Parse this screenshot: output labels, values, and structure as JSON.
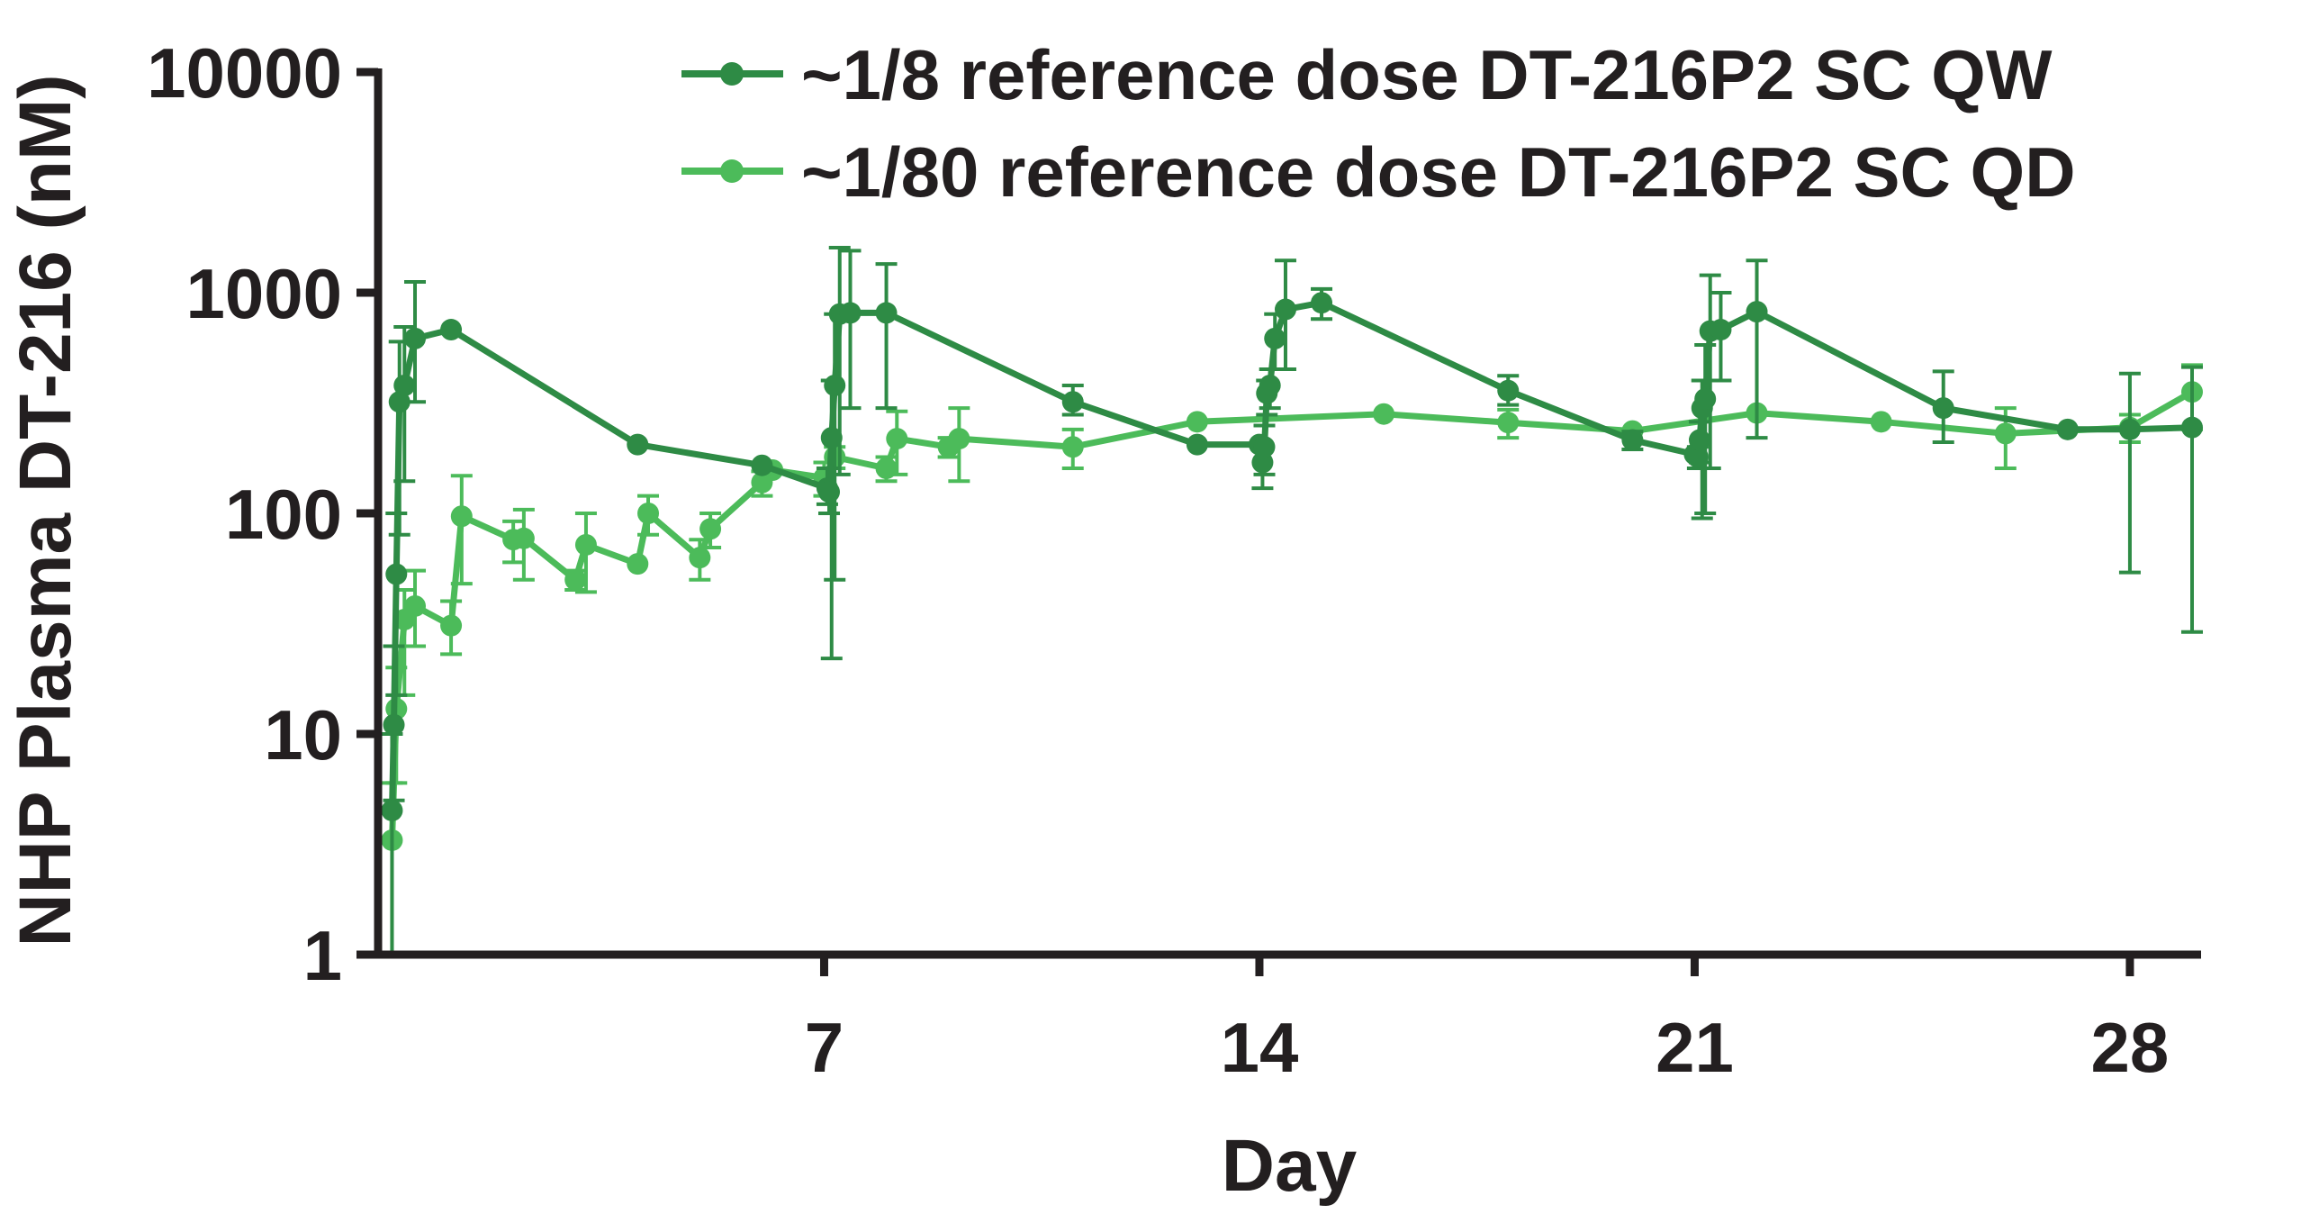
{
  "chart_data": {
    "type": "line",
    "title": "",
    "xlabel": "Day",
    "ylabel": "NHP Plasma DT-216 (nM)",
    "yscale": "log",
    "ylim": [
      1,
      10000
    ],
    "xlim": [
      0,
      29
    ],
    "x_ticks": [
      7,
      14,
      21,
      28
    ],
    "x_tick_labels": [
      "7",
      "14",
      "21",
      "28"
    ],
    "y_ticks": [
      1,
      10,
      100,
      1000,
      10000
    ],
    "y_tick_labels": [
      "1",
      "10",
      "100",
      "1000",
      "10000"
    ],
    "legend_position": "top-right",
    "series": [
      {
        "name": "~1/8 reference dose DT-216P2 SC QW",
        "color": "#2e8b45",
        "points": [
          {
            "x": 0.05,
            "y": 4.5,
            "lo": 1,
            "hi": 10
          },
          {
            "x": 0.08,
            "y": 11,
            "lo": 5,
            "hi": 25
          },
          {
            "x": 0.12,
            "y": 53,
            "lo": 15,
            "hi": 100
          },
          {
            "x": 0.17,
            "y": 320,
            "lo": 80,
            "hi": 600
          },
          {
            "x": 0.25,
            "y": 380,
            "lo": 140,
            "hi": 700
          },
          {
            "x": 0.42,
            "y": 620,
            "lo": 320,
            "hi": 1120
          },
          {
            "x": 1.0,
            "y": 680,
            "lo": 680,
            "hi": 680
          },
          {
            "x": 4.0,
            "y": 205,
            "lo": 205,
            "hi": 205
          },
          {
            "x": 6.0,
            "y": 165,
            "lo": 165,
            "hi": 165
          },
          {
            "x": 7.05,
            "y": 130,
            "lo": 110,
            "hi": 160
          },
          {
            "x": 7.08,
            "y": 125,
            "lo": 100,
            "hi": 160
          },
          {
            "x": 7.12,
            "y": 220,
            "lo": 22,
            "hi": 400
          },
          {
            "x": 7.17,
            "y": 380,
            "lo": 50,
            "hi": 800
          },
          {
            "x": 7.25,
            "y": 800,
            "lo": 150,
            "hi": 1600
          },
          {
            "x": 7.42,
            "y": 810,
            "lo": 300,
            "hi": 1550
          },
          {
            "x": 8.0,
            "y": 810,
            "lo": 300,
            "hi": 1350
          },
          {
            "x": 11.0,
            "y": 320,
            "lo": 280,
            "hi": 380
          },
          {
            "x": 13.0,
            "y": 205,
            "lo": 205,
            "hi": 205
          },
          {
            "x": 14.0,
            "y": 205,
            "lo": 205,
            "hi": 205
          },
          {
            "x": 14.05,
            "y": 170,
            "lo": 130,
            "hi": 200
          },
          {
            "x": 14.08,
            "y": 200,
            "lo": 150,
            "hi": 250
          },
          {
            "x": 14.12,
            "y": 350,
            "lo": 280,
            "hi": 400
          },
          {
            "x": 14.17,
            "y": 380,
            "lo": 300,
            "hi": 450
          },
          {
            "x": 14.25,
            "y": 620,
            "lo": 450,
            "hi": 800
          },
          {
            "x": 14.42,
            "y": 840,
            "lo": 450,
            "hi": 1400
          },
          {
            "x": 15.0,
            "y": 900,
            "lo": 760,
            "hi": 1040
          },
          {
            "x": 18.0,
            "y": 360,
            "lo": 310,
            "hi": 420
          },
          {
            "x": 20.0,
            "y": 215,
            "lo": 195,
            "hi": 235
          },
          {
            "x": 21.0,
            "y": 185,
            "lo": 185,
            "hi": 185
          },
          {
            "x": 21.05,
            "y": 180,
            "lo": 160,
            "hi": 200
          },
          {
            "x": 21.08,
            "y": 215,
            "lo": 170,
            "hi": 260
          },
          {
            "x": 21.12,
            "y": 300,
            "lo": 95,
            "hi": 400
          },
          {
            "x": 21.17,
            "y": 330,
            "lo": 100,
            "hi": 580
          },
          {
            "x": 21.25,
            "y": 670,
            "lo": 160,
            "hi": 1200
          },
          {
            "x": 21.42,
            "y": 680,
            "lo": 400,
            "hi": 1000
          },
          {
            "x": 22.0,
            "y": 820,
            "lo": 220,
            "hi": 1400
          },
          {
            "x": 25.0,
            "y": 300,
            "lo": 210,
            "hi": 440
          },
          {
            "x": 27.0,
            "y": 240,
            "lo": 240,
            "hi": 240
          },
          {
            "x": 28.0,
            "y": 240,
            "lo": 54,
            "hi": 430
          },
          {
            "x": 29.0,
            "y": 245,
            "lo": 29,
            "hi": 460
          }
        ]
      },
      {
        "name": "~1/80 reference dose DT-216P2 SC QD",
        "color": "#4cbb5a",
        "points": [
          {
            "x": 0.05,
            "y": 3.3,
            "lo": 1,
            "hi": 6
          },
          {
            "x": 0.12,
            "y": 13,
            "lo": 6,
            "hi": 20
          },
          {
            "x": 0.25,
            "y": 33,
            "lo": 15,
            "hi": 45
          },
          {
            "x": 0.42,
            "y": 38,
            "lo": 25,
            "hi": 55
          },
          {
            "x": 1.0,
            "y": 31,
            "lo": 23,
            "hi": 40
          },
          {
            "x": 1.17,
            "y": 97,
            "lo": 48,
            "hi": 148
          },
          {
            "x": 2.0,
            "y": 76,
            "lo": 60,
            "hi": 92
          },
          {
            "x": 2.17,
            "y": 77,
            "lo": 50,
            "hi": 104
          },
          {
            "x": 3.0,
            "y": 50,
            "lo": 45,
            "hi": 55
          },
          {
            "x": 3.17,
            "y": 72,
            "lo": 44,
            "hi": 100
          },
          {
            "x": 4.0,
            "y": 59,
            "lo": 59,
            "hi": 59
          },
          {
            "x": 4.17,
            "y": 100,
            "lo": 80,
            "hi": 120
          },
          {
            "x": 5.0,
            "y": 63,
            "lo": 50,
            "hi": 76
          },
          {
            "x": 5.17,
            "y": 85,
            "lo": 70,
            "hi": 100
          },
          {
            "x": 6.0,
            "y": 138,
            "lo": 120,
            "hi": 155
          },
          {
            "x": 6.17,
            "y": 157,
            "lo": 157,
            "hi": 157
          },
          {
            "x": 7.0,
            "y": 145,
            "lo": 120,
            "hi": 170
          },
          {
            "x": 7.17,
            "y": 180,
            "lo": 160,
            "hi": 200
          },
          {
            "x": 8.0,
            "y": 160,
            "lo": 140,
            "hi": 180
          },
          {
            "x": 8.17,
            "y": 218,
            "lo": 150,
            "hi": 290
          },
          {
            "x": 9.0,
            "y": 200,
            "lo": 180,
            "hi": 220
          },
          {
            "x": 9.17,
            "y": 218,
            "lo": 140,
            "hi": 300
          },
          {
            "x": 11.0,
            "y": 200,
            "lo": 160,
            "hi": 240
          },
          {
            "x": 13.0,
            "y": 260,
            "lo": 260,
            "hi": 260
          },
          {
            "x": 16.0,
            "y": 282,
            "lo": 282,
            "hi": 282
          },
          {
            "x": 18.0,
            "y": 258,
            "lo": 220,
            "hi": 295
          },
          {
            "x": 20.0,
            "y": 236,
            "lo": 236,
            "hi": 236
          },
          {
            "x": 22.0,
            "y": 285,
            "lo": 285,
            "hi": 285
          },
          {
            "x": 24.0,
            "y": 260,
            "lo": 260,
            "hi": 260
          },
          {
            "x": 26.0,
            "y": 230,
            "lo": 160,
            "hi": 300
          },
          {
            "x": 28.0,
            "y": 245,
            "lo": 210,
            "hi": 280
          },
          {
            "x": 29.0,
            "y": 355,
            "lo": 240,
            "hi": 470
          }
        ]
      }
    ]
  }
}
